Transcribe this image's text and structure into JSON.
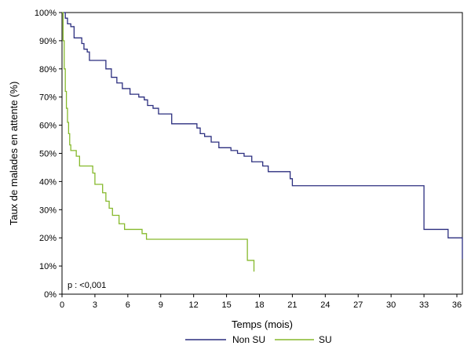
{
  "chart_data": {
    "type": "line",
    "title": "",
    "xlabel": "Temps (mois)",
    "ylabel": "Taux de malades en attente (%)",
    "xlim": [
      0,
      36.5
    ],
    "ylim": [
      0,
      100
    ],
    "x_ticks": [
      0,
      3,
      6,
      9,
      12,
      15,
      18,
      21,
      24,
      27,
      30,
      33,
      36
    ],
    "y_ticks": [
      0,
      10,
      20,
      30,
      40,
      50,
      60,
      70,
      80,
      90,
      100
    ],
    "y_tick_suffix": "%",
    "grid": false,
    "legend_position": "bottom",
    "annotation": "p : <0,001",
    "series": [
      {
        "name": "Non SU",
        "color": "#2b2e7f",
        "step": true,
        "points": [
          [
            0,
            100
          ],
          [
            0.3,
            98
          ],
          [
            0.5,
            96
          ],
          [
            0.8,
            95
          ],
          [
            1.1,
            91
          ],
          [
            1.5,
            91
          ],
          [
            1.8,
            89
          ],
          [
            2.0,
            87
          ],
          [
            2.3,
            86
          ],
          [
            2.5,
            83
          ],
          [
            3.3,
            83
          ],
          [
            4.0,
            80
          ],
          [
            4.5,
            77
          ],
          [
            5.0,
            75
          ],
          [
            5.5,
            73
          ],
          [
            6.2,
            71
          ],
          [
            7.0,
            70
          ],
          [
            7.5,
            69
          ],
          [
            7.8,
            67
          ],
          [
            8.3,
            66
          ],
          [
            8.8,
            64
          ],
          [
            10.0,
            60.5
          ],
          [
            12.3,
            59
          ],
          [
            12.6,
            57
          ],
          [
            13.0,
            56
          ],
          [
            13.6,
            54
          ],
          [
            14.3,
            52
          ],
          [
            15.4,
            51
          ],
          [
            16.0,
            50
          ],
          [
            16.6,
            49
          ],
          [
            17.3,
            47
          ],
          [
            18.3,
            45.5
          ],
          [
            18.8,
            43.5
          ],
          [
            20.8,
            41
          ],
          [
            21.0,
            38.5
          ],
          [
            33.0,
            23
          ],
          [
            35.2,
            20
          ],
          [
            36.5,
            12.5
          ]
        ]
      },
      {
        "name": "SU",
        "color": "#86b92c",
        "step": true,
        "points": [
          [
            0,
            100
          ],
          [
            0.1,
            90
          ],
          [
            0.2,
            80
          ],
          [
            0.3,
            72
          ],
          [
            0.4,
            66
          ],
          [
            0.5,
            61
          ],
          [
            0.6,
            57
          ],
          [
            0.7,
            53
          ],
          [
            0.8,
            51
          ],
          [
            1.3,
            49
          ],
          [
            1.6,
            45.5
          ],
          [
            2.8,
            43
          ],
          [
            3.0,
            39
          ],
          [
            3.7,
            36
          ],
          [
            4.0,
            33
          ],
          [
            4.3,
            30.5
          ],
          [
            4.6,
            28
          ],
          [
            5.2,
            25
          ],
          [
            5.7,
            23
          ],
          [
            7.3,
            21.5
          ],
          [
            7.7,
            19.5
          ],
          [
            12.4,
            19.5
          ],
          [
            16.9,
            12
          ],
          [
            17.5,
            8
          ]
        ]
      }
    ]
  }
}
